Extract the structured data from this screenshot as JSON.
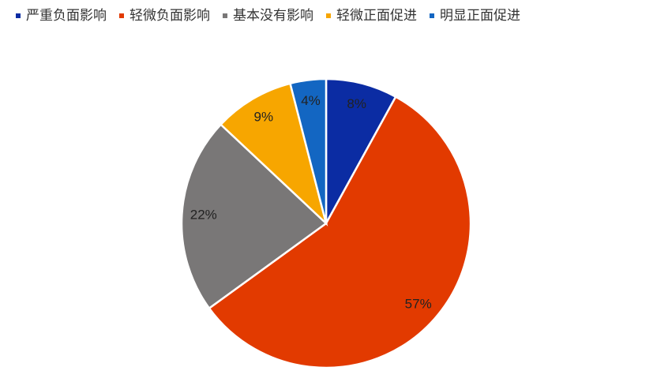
{
  "chart_data": {
    "type": "pie",
    "categories": [
      "严重负面影响",
      "轻微负面影响",
      "基本没有影响",
      "轻微正面促进",
      "明显正面促进"
    ],
    "values": [
      8,
      57,
      22,
      9,
      4
    ],
    "value_labels": [
      "8%",
      "57%",
      "22%",
      "9%",
      "4%"
    ],
    "colors": [
      "#0b2ca3",
      "#e23a00",
      "#797777",
      "#f7a600",
      "#1366c2"
    ],
    "legend_position": "top"
  }
}
